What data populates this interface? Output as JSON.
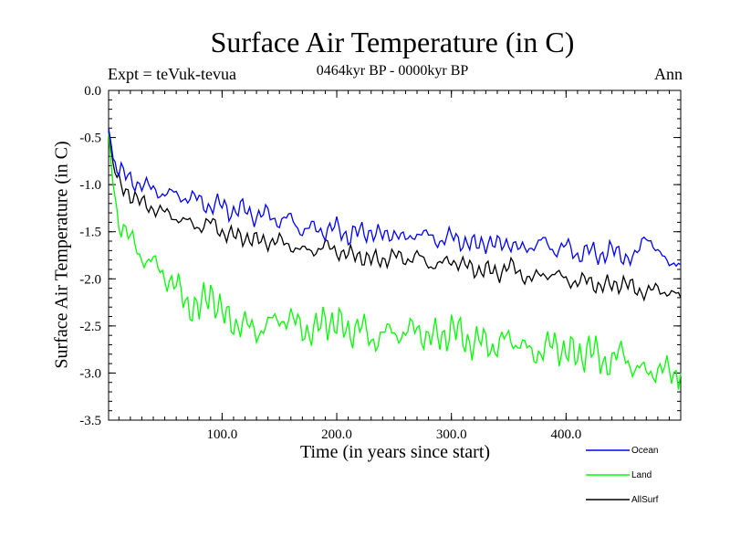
{
  "chart_data": {
    "type": "line",
    "title": "Surface Air Temperature (in C)",
    "subtitle": "0464kyr BP - 0000kyr BP",
    "annotation_left": "Expt = teVuk-tevua",
    "annotation_right": "Ann",
    "xlabel": "Time (in years since start)",
    "ylabel": "Surface Air Temperature (in C)",
    "xlim": [
      1,
      500
    ],
    "ylim": [
      -3.5,
      0.0
    ],
    "xticks": [
      100,
      200,
      300,
      400
    ],
    "xtick_labels": [
      "100.0",
      "200.0",
      "300.0",
      "400.0"
    ],
    "yticks": [
      0.0,
      -0.5,
      -1.0,
      -1.5,
      -2.0,
      -2.5,
      -3.0,
      -3.5
    ],
    "ytick_labels": [
      "0.0",
      "-0.5",
      "-1.0",
      "-1.5",
      "-2.0",
      "-2.5",
      "-3.0",
      "-3.5"
    ],
    "grid": false,
    "legend_position": "bottom-right",
    "series": [
      {
        "name": "Ocean",
        "color": "#0000ff",
        "x": [
          1,
          5,
          10,
          20,
          30,
          40,
          50,
          60,
          70,
          80,
          90,
          100,
          110,
          120,
          130,
          140,
          150,
          160,
          170,
          180,
          190,
          200,
          210,
          220,
          230,
          240,
          250,
          260,
          270,
          280,
          290,
          300,
          310,
          320,
          330,
          340,
          350,
          360,
          370,
          380,
          390,
          400,
          410,
          420,
          430,
          440,
          450,
          460,
          470,
          480,
          490,
          500
        ],
        "values": [
          -0.4,
          -0.7,
          -0.85,
          -0.95,
          -1.0,
          -1.05,
          -1.1,
          -1.1,
          -1.15,
          -1.15,
          -1.25,
          -1.2,
          -1.3,
          -1.25,
          -1.35,
          -1.3,
          -1.4,
          -1.35,
          -1.5,
          -1.45,
          -1.5,
          -1.45,
          -1.55,
          -1.5,
          -1.5,
          -1.55,
          -1.5,
          -1.6,
          -1.5,
          -1.55,
          -1.6,
          -1.55,
          -1.6,
          -1.65,
          -1.6,
          -1.65,
          -1.6,
          -1.7,
          -1.65,
          -1.6,
          -1.7,
          -1.65,
          -1.75,
          -1.7,
          -1.75,
          -1.7,
          -1.75,
          -1.8,
          -1.5,
          -1.75,
          -1.8,
          -1.85
        ]
      },
      {
        "name": "Land",
        "color": "#00ff00",
        "x": [
          1,
          5,
          10,
          20,
          30,
          40,
          50,
          60,
          70,
          80,
          90,
          100,
          110,
          120,
          130,
          140,
          150,
          160,
          170,
          180,
          190,
          200,
          210,
          220,
          230,
          240,
          250,
          260,
          270,
          280,
          290,
          300,
          310,
          320,
          330,
          340,
          350,
          360,
          370,
          380,
          390,
          400,
          410,
          420,
          430,
          440,
          450,
          460,
          470,
          480,
          490,
          500
        ],
        "values": [
          -0.45,
          -1.05,
          -1.35,
          -1.6,
          -1.75,
          -1.85,
          -1.95,
          -2.1,
          -2.25,
          -2.35,
          -2.1,
          -2.4,
          -2.45,
          -2.5,
          -2.55,
          -2.5,
          -2.4,
          -2.45,
          -2.5,
          -2.6,
          -2.4,
          -2.5,
          -2.55,
          -2.5,
          -2.65,
          -2.6,
          -2.55,
          -2.6,
          -2.5,
          -2.65,
          -2.6,
          -2.55,
          -2.6,
          -2.7,
          -2.65,
          -2.75,
          -2.6,
          -2.7,
          -2.8,
          -2.75,
          -2.7,
          -2.75,
          -2.85,
          -2.7,
          -2.9,
          -2.85,
          -2.8,
          -2.95,
          -3.0,
          -2.95,
          -3.0,
          -3.0
        ]
      },
      {
        "name": "AllSurf",
        "color": "#000000",
        "x": [
          1,
          5,
          10,
          20,
          30,
          40,
          50,
          60,
          70,
          80,
          90,
          100,
          110,
          120,
          130,
          140,
          150,
          160,
          170,
          180,
          190,
          200,
          210,
          220,
          230,
          240,
          250,
          260,
          270,
          280,
          290,
          300,
          310,
          320,
          330,
          340,
          350,
          360,
          370,
          380,
          390,
          400,
          410,
          420,
          430,
          440,
          450,
          460,
          470,
          480,
          490,
          500
        ],
        "values": [
          -0.4,
          -0.8,
          -1.0,
          -1.1,
          -1.2,
          -1.25,
          -1.3,
          -1.35,
          -1.4,
          -1.45,
          -1.4,
          -1.5,
          -1.55,
          -1.55,
          -1.6,
          -1.6,
          -1.6,
          -1.65,
          -1.7,
          -1.7,
          -1.65,
          -1.7,
          -1.75,
          -1.75,
          -1.8,
          -1.8,
          -1.75,
          -1.8,
          -1.75,
          -1.85,
          -1.85,
          -1.8,
          -1.85,
          -1.9,
          -1.9,
          -1.95,
          -1.85,
          -1.95,
          -2.0,
          -1.95,
          -1.95,
          -2.0,
          -2.05,
          -2.0,
          -2.1,
          -2.05,
          -2.05,
          -2.1,
          -2.15,
          -2.1,
          -2.15,
          -2.2
        ]
      }
    ]
  }
}
